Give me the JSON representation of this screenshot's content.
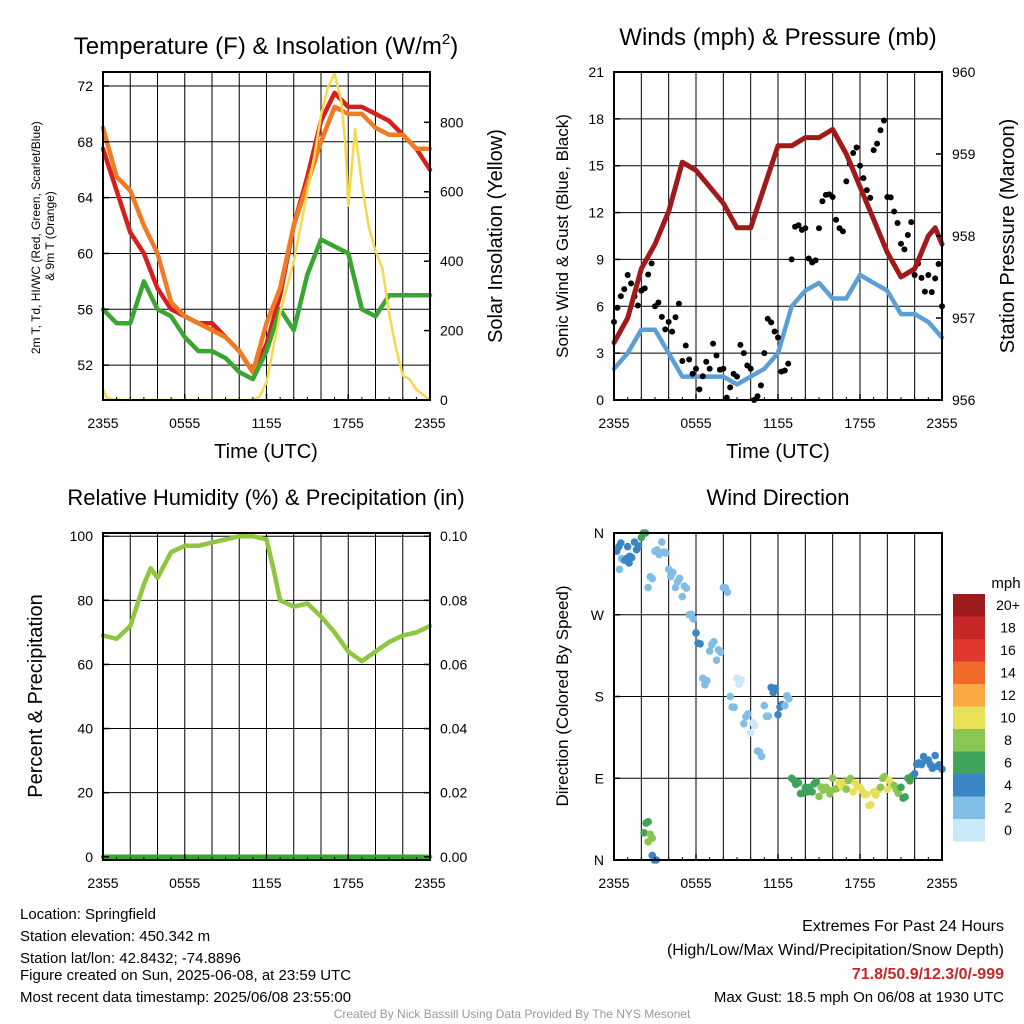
{
  "colors": {
    "temp": "#d62020",
    "dewpoint": "#3aa632",
    "heat_index": "#f07b22",
    "insolation": "#f6d94a",
    "wind": "#5b9fd6",
    "gust": "#000000",
    "pressure": "#a01a1a",
    "rh": "#8dc63f",
    "precip": "#3aa632"
  },
  "x_ticks": [
    "2355",
    "0555",
    "1155",
    "1755",
    "2355"
  ],
  "panel1": {
    "title": "Temperature (F) & Insolation (W/m²)",
    "ylabel_left_lines": [
      "2m T, Td, HI/WC (Red, Green, Scarlet/Blue)",
      "& 9m T (Orange)"
    ],
    "ylabel_right": "Solar Insolation (Yellow)",
    "xlabel": "Time (UTC)"
  },
  "panel2": {
    "title": "Winds (mph) & Pressure (mb)",
    "ylabel_left": "Sonic Wind & Gust (Blue, Black)",
    "ylabel_right": "Station Pressure (Maroon)",
    "xlabel": "Time (UTC)"
  },
  "panel3": {
    "title": "Relative Humidity (%) & Precipitation (in)",
    "ylabel_left": "Percent & Precipitation"
  },
  "panel4": {
    "title": "Wind Direction",
    "ylabel_left": "Direction (Colored By Speed)",
    "legend_title": "mph",
    "legend_labels": [
      "20+",
      "18",
      "16",
      "14",
      "12",
      "10",
      "8",
      "6",
      "4",
      "2",
      "0"
    ],
    "legend_colors": [
      "#9e1b1b",
      "#c62828",
      "#e0372f",
      "#f06a2a",
      "#f9a844",
      "#e9e05a",
      "#8cc652",
      "#3fa35b",
      "#3a85c4",
      "#82bde6",
      "#c9e8f8"
    ]
  },
  "footer": {
    "location": "Location: Springfield",
    "elevation": "Station elevation: 450.342 m",
    "latlon": "Station lat/lon: 42.8432; -74.8896",
    "created": "Figure created on Sun, 2025-06-08, at 23:59 UTC",
    "recent": "Most recent data timestamp: 2025/06/08 23:55:00",
    "ext_title": "Extremes For Past 24 Hours",
    "ext_sub": "(High/Low/Max Wind/Precipitation/Snow Depth)",
    "ext_vals": "71.8/50.9/12.3/0/-999",
    "max_gust": "Max Gust: 18.5 mph On 06/08 at 1930 UTC",
    "credit": "Created By Nick Bassill Using Data Provided By The NYS Mesonet"
  },
  "chart_data": [
    {
      "type": "line",
      "title": "Temperature (F) & Insolation (W/m²)",
      "xlabel": "Time (UTC)",
      "ylabel": "2m T, Td, HI/WC (Red, Green, Scarlet/Blue) & 9m T (Orange)",
      "y2label": "Solar Insolation (Yellow)",
      "xlim": [
        0,
        24
      ],
      "ylim": [
        49.5,
        73
      ],
      "y2lim": [
        0,
        945
      ],
      "yticks": [
        52,
        56,
        60,
        64,
        68,
        72
      ],
      "y2ticks": [
        0,
        200,
        400,
        600,
        800
      ],
      "series": [
        {
          "axis": "left",
          "color": "#d62020",
          "x": [
            0,
            1,
            2,
            3,
            4,
            5,
            6,
            7,
            8,
            9,
            10,
            11,
            12,
            13,
            14,
            15,
            16,
            16.5,
            17,
            18,
            19,
            20,
            21,
            22,
            23,
            24
          ],
          "values": [
            67.5,
            64.5,
            61.5,
            60,
            57.5,
            56,
            55.5,
            55,
            55,
            54,
            53,
            51.5,
            53.5,
            57,
            62,
            65.5,
            69.5,
            70.5,
            71.5,
            70.5,
            70.5,
            70,
            69.5,
            68.5,
            67.5,
            66
          ]
        },
        {
          "axis": "left",
          "color": "#f07b22",
          "x": [
            0,
            1,
            2,
            3,
            4,
            5,
            6,
            7,
            8,
            9,
            10,
            11,
            12,
            13,
            14,
            15,
            16,
            17,
            18,
            19,
            20,
            21,
            22,
            23,
            24
          ],
          "values": [
            69,
            65.5,
            64.5,
            62,
            60,
            56.5,
            55.5,
            55,
            54.5,
            54,
            53,
            51.5,
            55,
            57.5,
            62,
            65,
            68,
            70.5,
            70,
            70,
            69,
            68.5,
            68.5,
            67.5,
            67.5
          ]
        },
        {
          "axis": "left",
          "color": "#3aa632",
          "x": [
            0,
            1,
            2,
            3,
            4,
            5,
            6,
            7,
            8,
            9,
            10,
            11,
            12,
            13,
            14,
            15,
            16,
            17,
            18,
            19,
            20,
            21,
            22,
            23,
            24
          ],
          "values": [
            56,
            55,
            55,
            58,
            56,
            55.5,
            54,
            53,
            53,
            52.5,
            51.5,
            51,
            53,
            56,
            54.5,
            58.5,
            61,
            60.5,
            60,
            56,
            55.5,
            57,
            57,
            57,
            57
          ]
        },
        {
          "axis": "right",
          "color": "#f6d94a",
          "x": [
            0,
            0.3,
            1,
            4,
            7,
            9,
            10,
            11,
            11.5,
            12,
            12.5,
            13,
            14,
            15,
            15.5,
            16,
            16.5,
            17,
            17.5,
            17.8,
            18,
            18.5,
            19,
            19.5,
            20,
            20.5,
            21,
            21.5,
            22,
            22.5,
            23,
            24
          ],
          "values": [
            30,
            5,
            0,
            0,
            0,
            0,
            0,
            0,
            10,
            50,
            150,
            250,
            400,
            600,
            700,
            820,
            900,
            940,
            860,
            730,
            560,
            780,
            620,
            500,
            430,
            380,
            250,
            150,
            70,
            60,
            30,
            0
          ]
        }
      ]
    },
    {
      "type": "line",
      "title": "Winds (mph) & Pressure (mb)",
      "xlabel": "Time (UTC)",
      "ylabel": "Sonic Wind & Gust (Blue, Black)",
      "y2label": "Station Pressure (Maroon)",
      "xlim": [
        0,
        24
      ],
      "ylim": [
        0,
        21
      ],
      "y2lim": [
        956,
        960
      ],
      "yticks": [
        0,
        3,
        6,
        9,
        12,
        15,
        18,
        21
      ],
      "y2ticks": [
        956,
        957,
        958,
        959,
        960
      ],
      "series": [
        {
          "axis": "left",
          "color": "#5b9fd6",
          "label_role": "wind",
          "x": [
            0,
            1,
            2,
            3,
            4,
            5,
            6,
            7,
            8,
            9,
            10,
            11,
            12,
            13,
            14,
            15,
            16,
            17,
            18,
            19,
            20,
            21,
            22,
            23,
            24
          ],
          "values": [
            2,
            3,
            4.5,
            4.5,
            3,
            1.5,
            1.5,
            1.5,
            1.5,
            1,
            1.5,
            2,
            3,
            6,
            7,
            7.5,
            6.5,
            6.5,
            8,
            7.5,
            7,
            5.5,
            5.5,
            5,
            4
          ]
        },
        {
          "axis": "left",
          "color": "#000000",
          "type": "scatter",
          "label_role": "gust",
          "x": [
            0,
            1,
            2,
            3,
            4,
            5,
            6,
            7,
            8,
            9,
            10,
            11,
            12,
            13,
            14,
            15,
            16,
            17,
            18,
            19,
            20,
            21,
            22,
            23,
            24
          ],
          "values": [
            5,
            8,
            7,
            6,
            5,
            2.5,
            2,
            2,
            2,
            1.5,
            2,
            3,
            4,
            9,
            11,
            11,
            13,
            14,
            15,
            16,
            13,
            10,
            8,
            8,
            6
          ]
        },
        {
          "axis": "right",
          "color": "#a01a1a",
          "x": [
            0,
            1,
            2,
            3,
            4,
            5,
            6,
            7,
            8,
            9,
            10,
            11,
            12,
            13,
            14,
            15,
            16,
            17,
            17.5,
            18,
            19,
            20,
            21,
            22,
            23,
            23.5,
            24
          ],
          "values": [
            956.7,
            957,
            957.6,
            957.9,
            958.3,
            958.9,
            958.8,
            958.6,
            958.4,
            958.1,
            958.1,
            958.6,
            959.1,
            959.1,
            959.2,
            959.2,
            959.3,
            959,
            958.8,
            958.6,
            958.2,
            957.8,
            957.5,
            957.6,
            958,
            958.1,
            957.9
          ]
        }
      ]
    },
    {
      "type": "line",
      "title": "Relative Humidity (%) & Precipitation (in)",
      "ylabel": "Percent & Precipitation",
      "xlim": [
        0,
        24
      ],
      "ylim": [
        -1,
        101
      ],
      "y2lim": [
        -0.001,
        0.101
      ],
      "yticks": [
        0,
        20,
        40,
        60,
        80,
        100
      ],
      "y2ticks": [
        "0.00",
        "0.02",
        "0.04",
        "0.06",
        "0.08",
        "0.10"
      ],
      "series": [
        {
          "axis": "left",
          "color": "#8dc63f",
          "x": [
            0,
            1,
            2,
            3,
            3.5,
            4,
            5,
            6,
            7,
            8,
            9,
            10,
            11,
            12,
            12.5,
            13,
            14,
            15,
            16,
            17,
            18,
            19,
            20,
            21,
            22,
            23,
            24
          ],
          "values": [
            69,
            68,
            72,
            85,
            90,
            87,
            95,
            97,
            97,
            98,
            99,
            100,
            100,
            99,
            90,
            80,
            78,
            79,
            75,
            70,
            64,
            61,
            64,
            67,
            69,
            70,
            72
          ]
        },
        {
          "axis": "right",
          "color": "#3aa632",
          "x": [
            0,
            24
          ],
          "values": [
            0,
            0
          ]
        }
      ]
    },
    {
      "type": "scatter",
      "title": "Wind Direction",
      "ylabel": "Direction (Colored By Speed)",
      "xlim": [
        0,
        24
      ],
      "ylim": [
        0,
        360
      ],
      "ytick_labels": [
        "N",
        "E",
        "S",
        "W",
        "N"
      ],
      "yticks": [
        0,
        90,
        180,
        270,
        360
      ],
      "x": [
        0.2,
        0.4,
        0.8,
        1.0,
        1.5,
        2.0,
        2.5,
        3.0,
        3.5,
        4.0,
        4.5,
        5.0,
        5.5,
        6.0,
        6.5,
        7.0,
        7.5,
        8.0,
        8.5,
        9.0,
        9.5,
        10.0,
        10.5,
        11.0,
        11.5,
        12.0,
        12.5,
        13.0,
        13.5,
        14.0,
        14.5,
        15.0,
        15.5,
        16.0,
        16.5,
        17.0,
        17.5,
        18.0,
        18.5,
        19.0,
        19.5,
        20.0,
        20.5,
        21.0,
        21.5,
        22.0,
        22.5,
        23.0,
        23.5,
        24.0,
        2.2,
        2.5,
        2.8
      ],
      "values": [
        340,
        320,
        330,
        345,
        350,
        355,
        300,
        340,
        350,
        320,
        300,
        290,
        270,
        250,
        200,
        230,
        220,
        300,
        180,
        200,
        150,
        140,
        120,
        170,
        190,
        160,
        170,
        90,
        85,
        80,
        75,
        70,
        80,
        90,
        85,
        78,
        75,
        80,
        72,
        75,
        80,
        78,
        82,
        80,
        90,
        95,
        105,
        110,
        115,
        100,
        30,
        20,
        5
      ],
      "speeds": [
        3,
        2,
        3,
        4,
        3,
        5,
        1,
        2,
        1,
        2,
        1,
        2,
        1,
        3,
        2,
        1,
        2,
        1,
        1,
        0,
        1,
        0,
        1,
        2,
        3,
        4,
        2,
        5,
        6,
        5,
        6,
        7,
        8,
        8,
        9,
        8,
        10,
        9,
        10,
        9,
        8,
        9,
        7,
        5,
        5,
        4,
        4,
        3,
        4,
        3,
        6,
        7,
        4
      ]
    }
  ]
}
